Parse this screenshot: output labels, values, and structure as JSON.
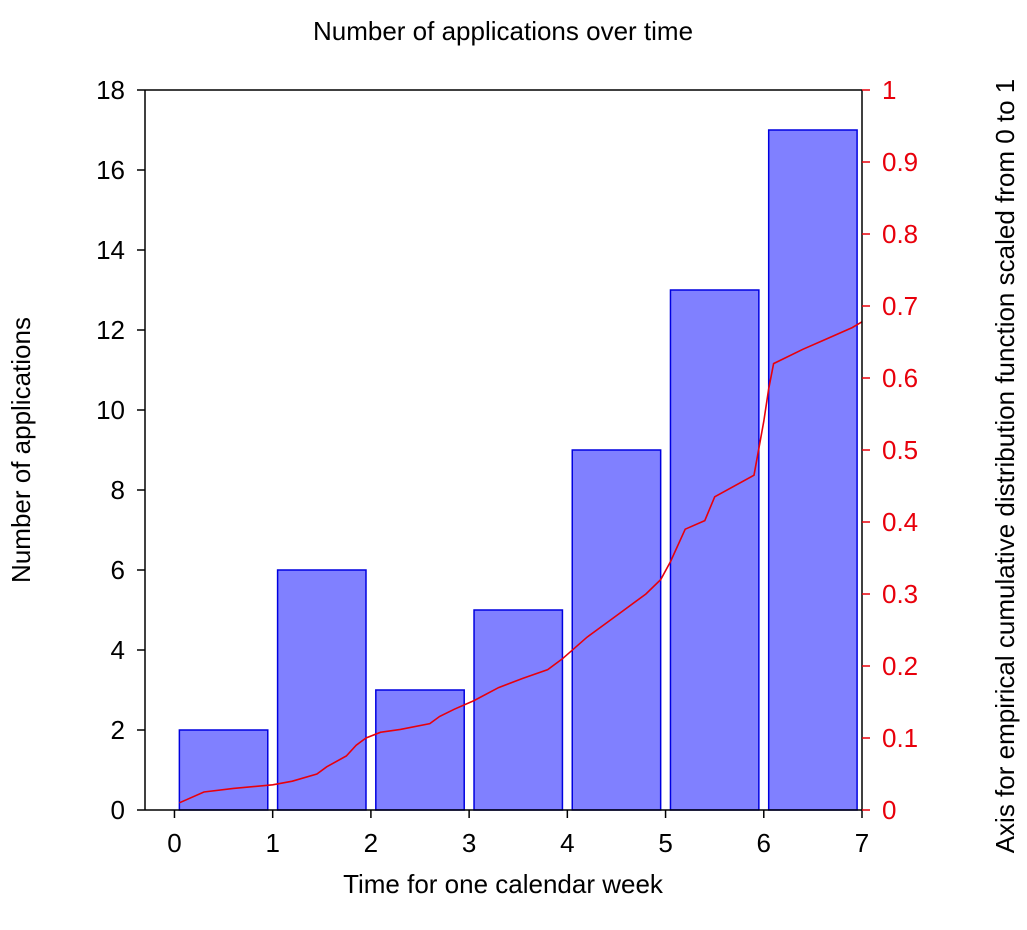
{
  "chart_data": {
    "type": "bar",
    "title": "Number of applications over time",
    "xlabel": "Time for one calendar week",
    "ylabel": "Number of applications",
    "y2label": "Axis for empirical cumulative distribution function scaled from 0 to 1",
    "xlim": [
      -0.3,
      7
    ],
    "ylim": [
      0,
      18
    ],
    "y2lim": [
      0,
      1
    ],
    "x_ticks": [
      0,
      1,
      2,
      3,
      4,
      5,
      6,
      7
    ],
    "y_ticks": [
      0,
      2,
      4,
      6,
      8,
      10,
      12,
      14,
      16,
      18
    ],
    "y2_ticks": [
      0,
      0.1,
      0.2,
      0.3,
      0.4,
      0.5,
      0.6,
      0.7,
      0.8,
      0.9,
      1
    ],
    "grid": false,
    "bars": [
      {
        "x_start": 0.05,
        "x_end": 0.95,
        "value": 2
      },
      {
        "x_start": 1.05,
        "x_end": 1.95,
        "value": 6
      },
      {
        "x_start": 2.05,
        "x_end": 2.95,
        "value": 3
      },
      {
        "x_start": 3.05,
        "x_end": 3.95,
        "value": 5
      },
      {
        "x_start": 4.05,
        "x_end": 4.95,
        "value": 9
      },
      {
        "x_start": 5.05,
        "x_end": 5.95,
        "value": 13
      },
      {
        "x_start": 6.05,
        "x_end": 6.95,
        "value": 17
      }
    ],
    "ecdf": {
      "x": [
        0.05,
        0.3,
        0.6,
        1.0,
        1.2,
        1.45,
        1.55,
        1.75,
        1.85,
        1.95,
        2.1,
        2.3,
        2.6,
        2.7,
        2.85,
        3.05,
        3.3,
        3.55,
        3.8,
        3.95,
        4.2,
        4.5,
        4.8,
        4.95,
        5.05,
        5.2,
        5.4,
        5.5,
        5.9,
        6.0,
        6.05,
        6.1,
        6.4,
        6.6,
        6.9,
        7.0
      ],
      "y": [
        0.01,
        0.025,
        0.03,
        0.035,
        0.04,
        0.05,
        0.06,
        0.075,
        0.09,
        0.1,
        0.108,
        0.112,
        0.12,
        0.13,
        0.14,
        0.152,
        0.17,
        0.183,
        0.195,
        0.21,
        0.24,
        0.27,
        0.3,
        0.32,
        0.345,
        0.39,
        0.402,
        0.435,
        0.465,
        0.54,
        0.585,
        0.62,
        0.64,
        0.652,
        0.67,
        0.678
      ]
    },
    "colors": {
      "bar_fill": "#8080ff",
      "bar_stroke": "#0000e0",
      "ecdf_line": "#e8000b",
      "y2_axis": "#e8000b"
    }
  }
}
